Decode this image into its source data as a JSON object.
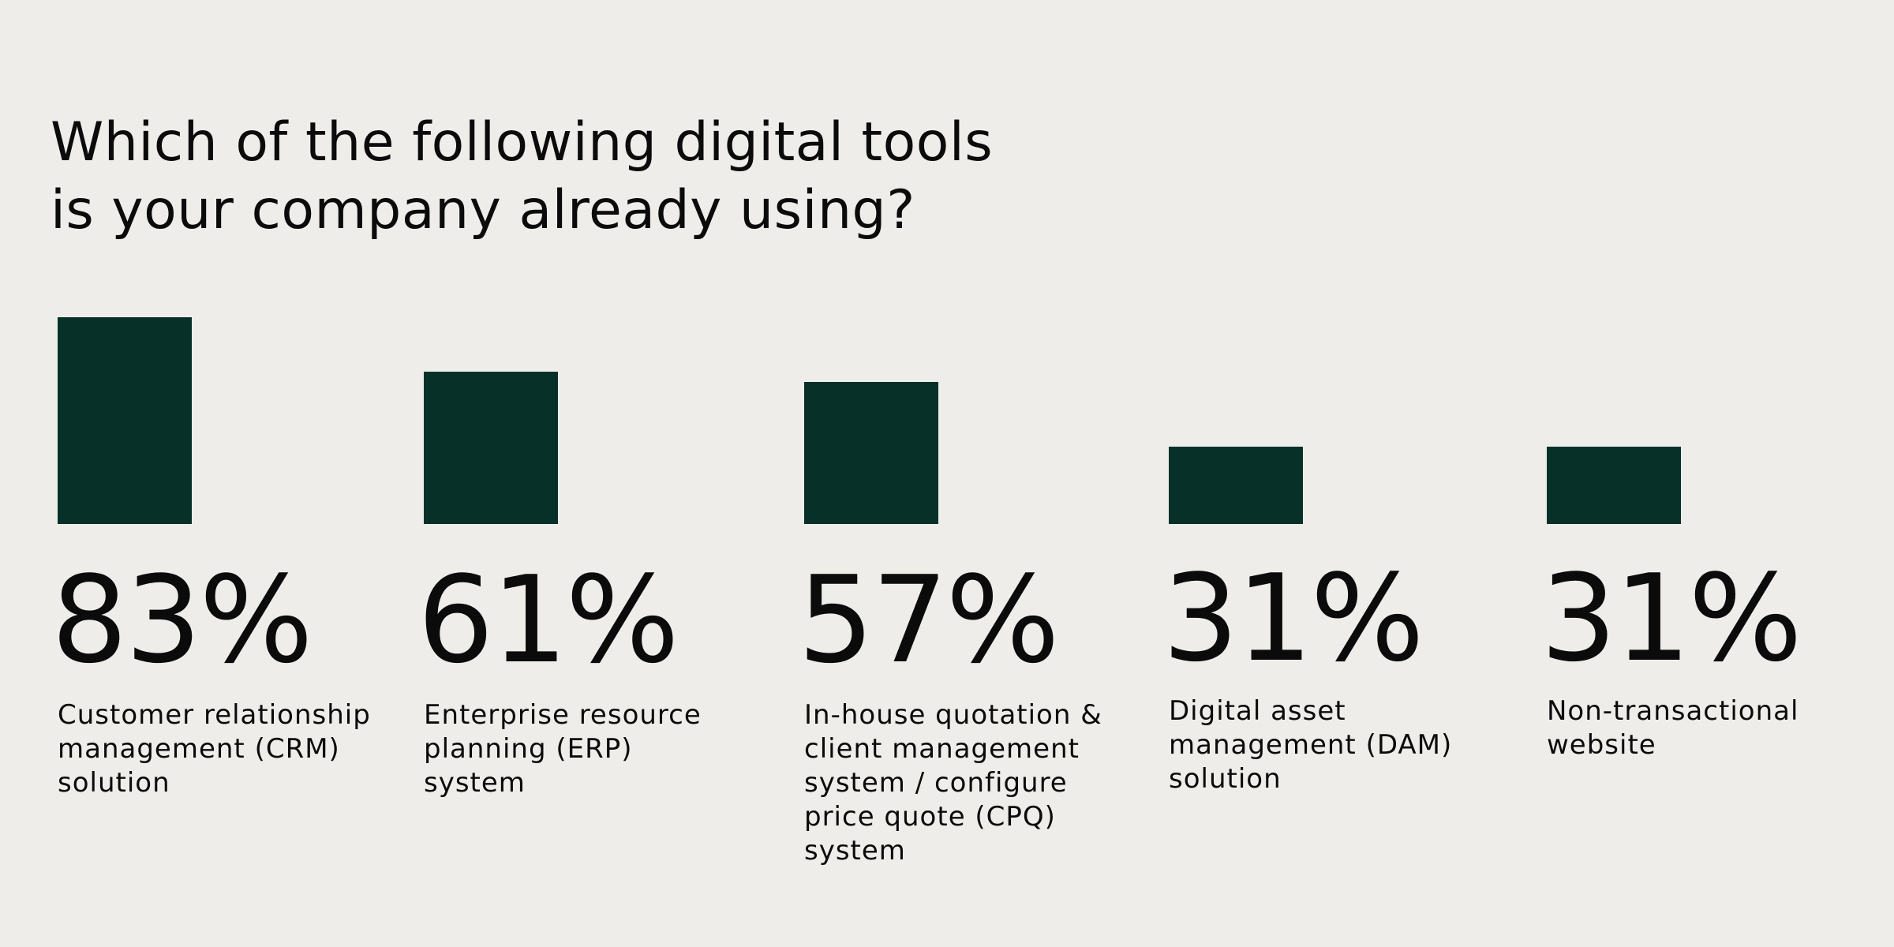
{
  "chart_data": {
    "type": "bar",
    "title": "Which of the following digital tools\nis your company already using?",
    "categories": [
      "Customer relationship management (CRM) solution",
      "Enterprise resource planning (ERP) system",
      "In-house quotation & client management system / configure price quote (CPQ) system",
      "Digital asset management (DAM) solution",
      "Non-transactional website"
    ],
    "values": [
      83,
      61,
      57,
      31,
      31
    ],
    "value_labels": [
      "83%",
      "61%",
      "57%",
      "31%",
      "31%"
    ],
    "unit": "%",
    "bar_color": "#073029",
    "background_color": "#eeede9",
    "grid": false,
    "axes_visible": false
  }
}
